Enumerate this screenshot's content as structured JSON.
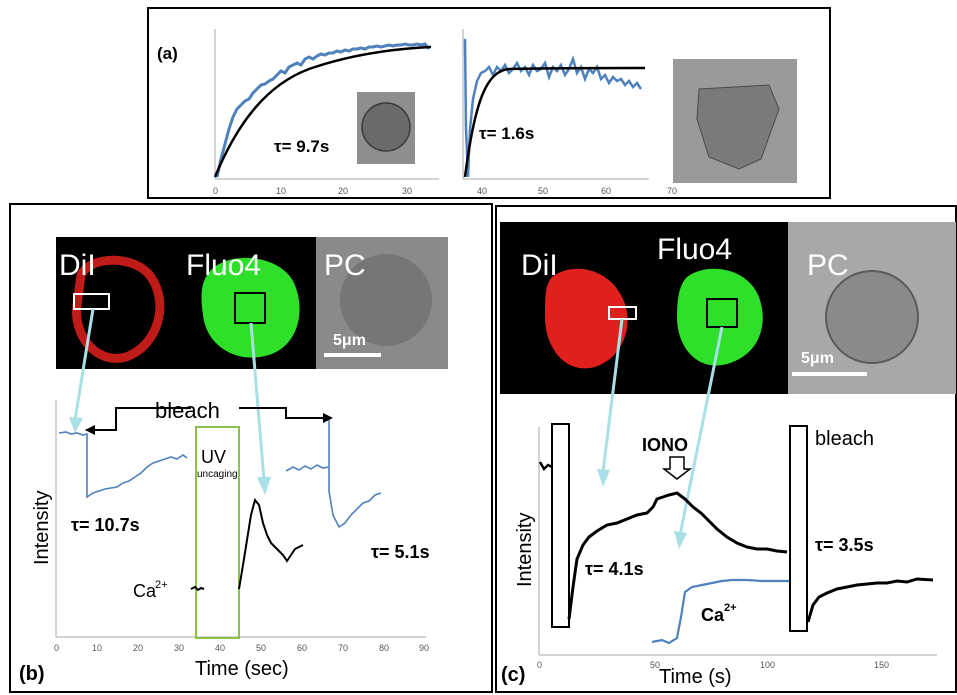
{
  "panels": {
    "a": {
      "label": "(a)",
      "tau_left": "τ= 9.7s",
      "tau_right": "τ= 1.6s",
      "x_ticks": [
        "0",
        "10",
        "20",
        "30",
        "40",
        "50",
        "60",
        "70"
      ]
    },
    "b": {
      "label": "(b)",
      "channels": [
        "DiI",
        "Fluo4",
        "PC"
      ],
      "scale_bar": "5μm",
      "bleach_label": "bleach",
      "uv_label": "UV",
      "uv_sub": "uncaging",
      "tau_left": "τ= 10.7s",
      "tau_right": "τ= 5.1s",
      "ca_label": "Ca",
      "ca_sup": "2+",
      "ylabel": "Intensity",
      "xlabel": "Time (sec)",
      "x_ticks": [
        "0",
        "10",
        "20",
        "30",
        "40",
        "50",
        "60",
        "70",
        "80",
        "90"
      ]
    },
    "c": {
      "label": "(c)",
      "channels": [
        "DiI",
        "Fluo4",
        "PC"
      ],
      "scale_bar": "5μm",
      "iono_label": "IONO",
      "bleach_label": "bleach",
      "tau_left": "τ= 4.1s",
      "tau_right": "τ= 3.5s",
      "ca_label": "Ca",
      "ca_sup": "2+",
      "ylabel": "Intensity",
      "xlabel": "Time (s)",
      "x_ticks": [
        "0",
        "50",
        "100",
        "150"
      ]
    }
  },
  "colors": {
    "trace_blue": "#4f81bd",
    "fit_black": "#000000",
    "dil_red": "#e0201c",
    "fluo_green": "#2ee02a",
    "uv_box": "#8bc34a",
    "arrow_cyan": "#a9dfe6"
  }
}
